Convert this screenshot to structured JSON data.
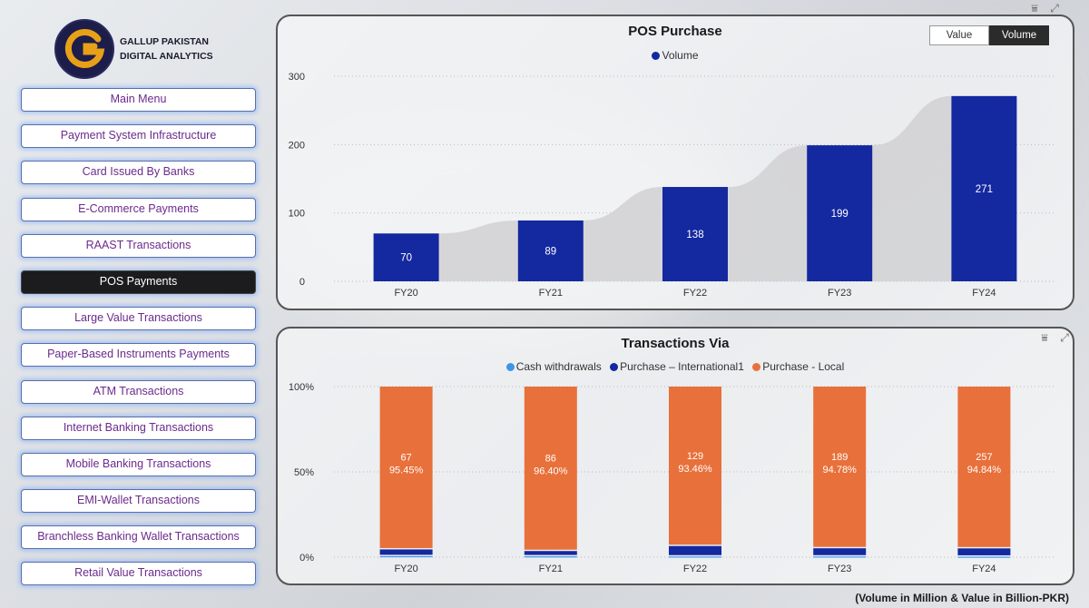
{
  "brand": {
    "line1": "GALLUP PAKISTAN",
    "line2": "DIGITAL ANALYTICS",
    "colors": {
      "ring": "#e8a019",
      "disc": "#1d1d4a"
    }
  },
  "menu": {
    "items": [
      {
        "label": "Main Menu",
        "active": false
      },
      {
        "label": "Payment System Infrastructure",
        "active": false
      },
      {
        "label": "Card Issued By Banks",
        "active": false
      },
      {
        "label": "E-Commerce Payments",
        "active": false
      },
      {
        "label": "RAAST Transactions",
        "active": false
      },
      {
        "label": "POS Payments",
        "active": true
      },
      {
        "label": "Large Value Transactions",
        "active": false
      },
      {
        "label": "Paper-Based Instruments Payments",
        "active": false
      },
      {
        "label": "ATM Transactions",
        "active": false
      },
      {
        "label": "Internet Banking Transactions",
        "active": false
      },
      {
        "label": "Mobile Banking Transactions",
        "active": false
      },
      {
        "label": "EMI-Wallet Transactions",
        "active": false
      },
      {
        "label": "Branchless Banking Wallet Transactions",
        "active": false
      },
      {
        "label": "Retail Value Transactions",
        "active": false
      }
    ]
  },
  "toggle": {
    "value_label": "Value",
    "volume_label": "Volume",
    "selected": "Volume"
  },
  "icons": {
    "filter": "filter-icon",
    "focus": "focus-mode-icon"
  },
  "footnote": "(Volume in Million & Value in Billion-PKR)",
  "chart_data": [
    {
      "type": "bar",
      "title": "POS Purchase",
      "categories": [
        "FY20",
        "FY21",
        "FY22",
        "FY23",
        "FY24"
      ],
      "series": [
        {
          "name": "Volume",
          "values": [
            70,
            89,
            138,
            199,
            271
          ],
          "color": "#1428a0"
        }
      ],
      "ylim": [
        0,
        300
      ],
      "yticks": [
        0,
        100,
        200,
        300
      ],
      "legend": "top-center",
      "grid": true
    },
    {
      "type": "bar",
      "stacked": "percent",
      "title": "Transactions Via",
      "categories": [
        "FY20",
        "FY21",
        "FY22",
        "FY23",
        "FY24"
      ],
      "series": [
        {
          "name": "Cash withdrawals",
          "color": "#3e95e8",
          "values_pct": [
            0.6,
            0.5,
            0.4,
            0.4,
            0.3
          ]
        },
        {
          "name": "Purchase – International1",
          "color": "#1428a0",
          "values_pct": [
            3.95,
            3.1,
            6.14,
            4.82,
            4.86
          ]
        },
        {
          "name": "Purchase - Local",
          "color": "#e8703a",
          "values_pct": [
            95.45,
            96.4,
            93.46,
            94.78,
            94.84
          ],
          "values": [
            67,
            86,
            129,
            189,
            257
          ]
        }
      ],
      "data_labels": [
        {
          "value": "67",
          "pct": "95.45%"
        },
        {
          "value": "86",
          "pct": "96.40%"
        },
        {
          "value": "129",
          "pct": "93.46%"
        },
        {
          "value": "189",
          "pct": "94.78%"
        },
        {
          "value": "257",
          "pct": "94.84%"
        }
      ],
      "yticks": [
        "0%",
        "50%",
        "100%"
      ],
      "legend": "top-center"
    }
  ]
}
